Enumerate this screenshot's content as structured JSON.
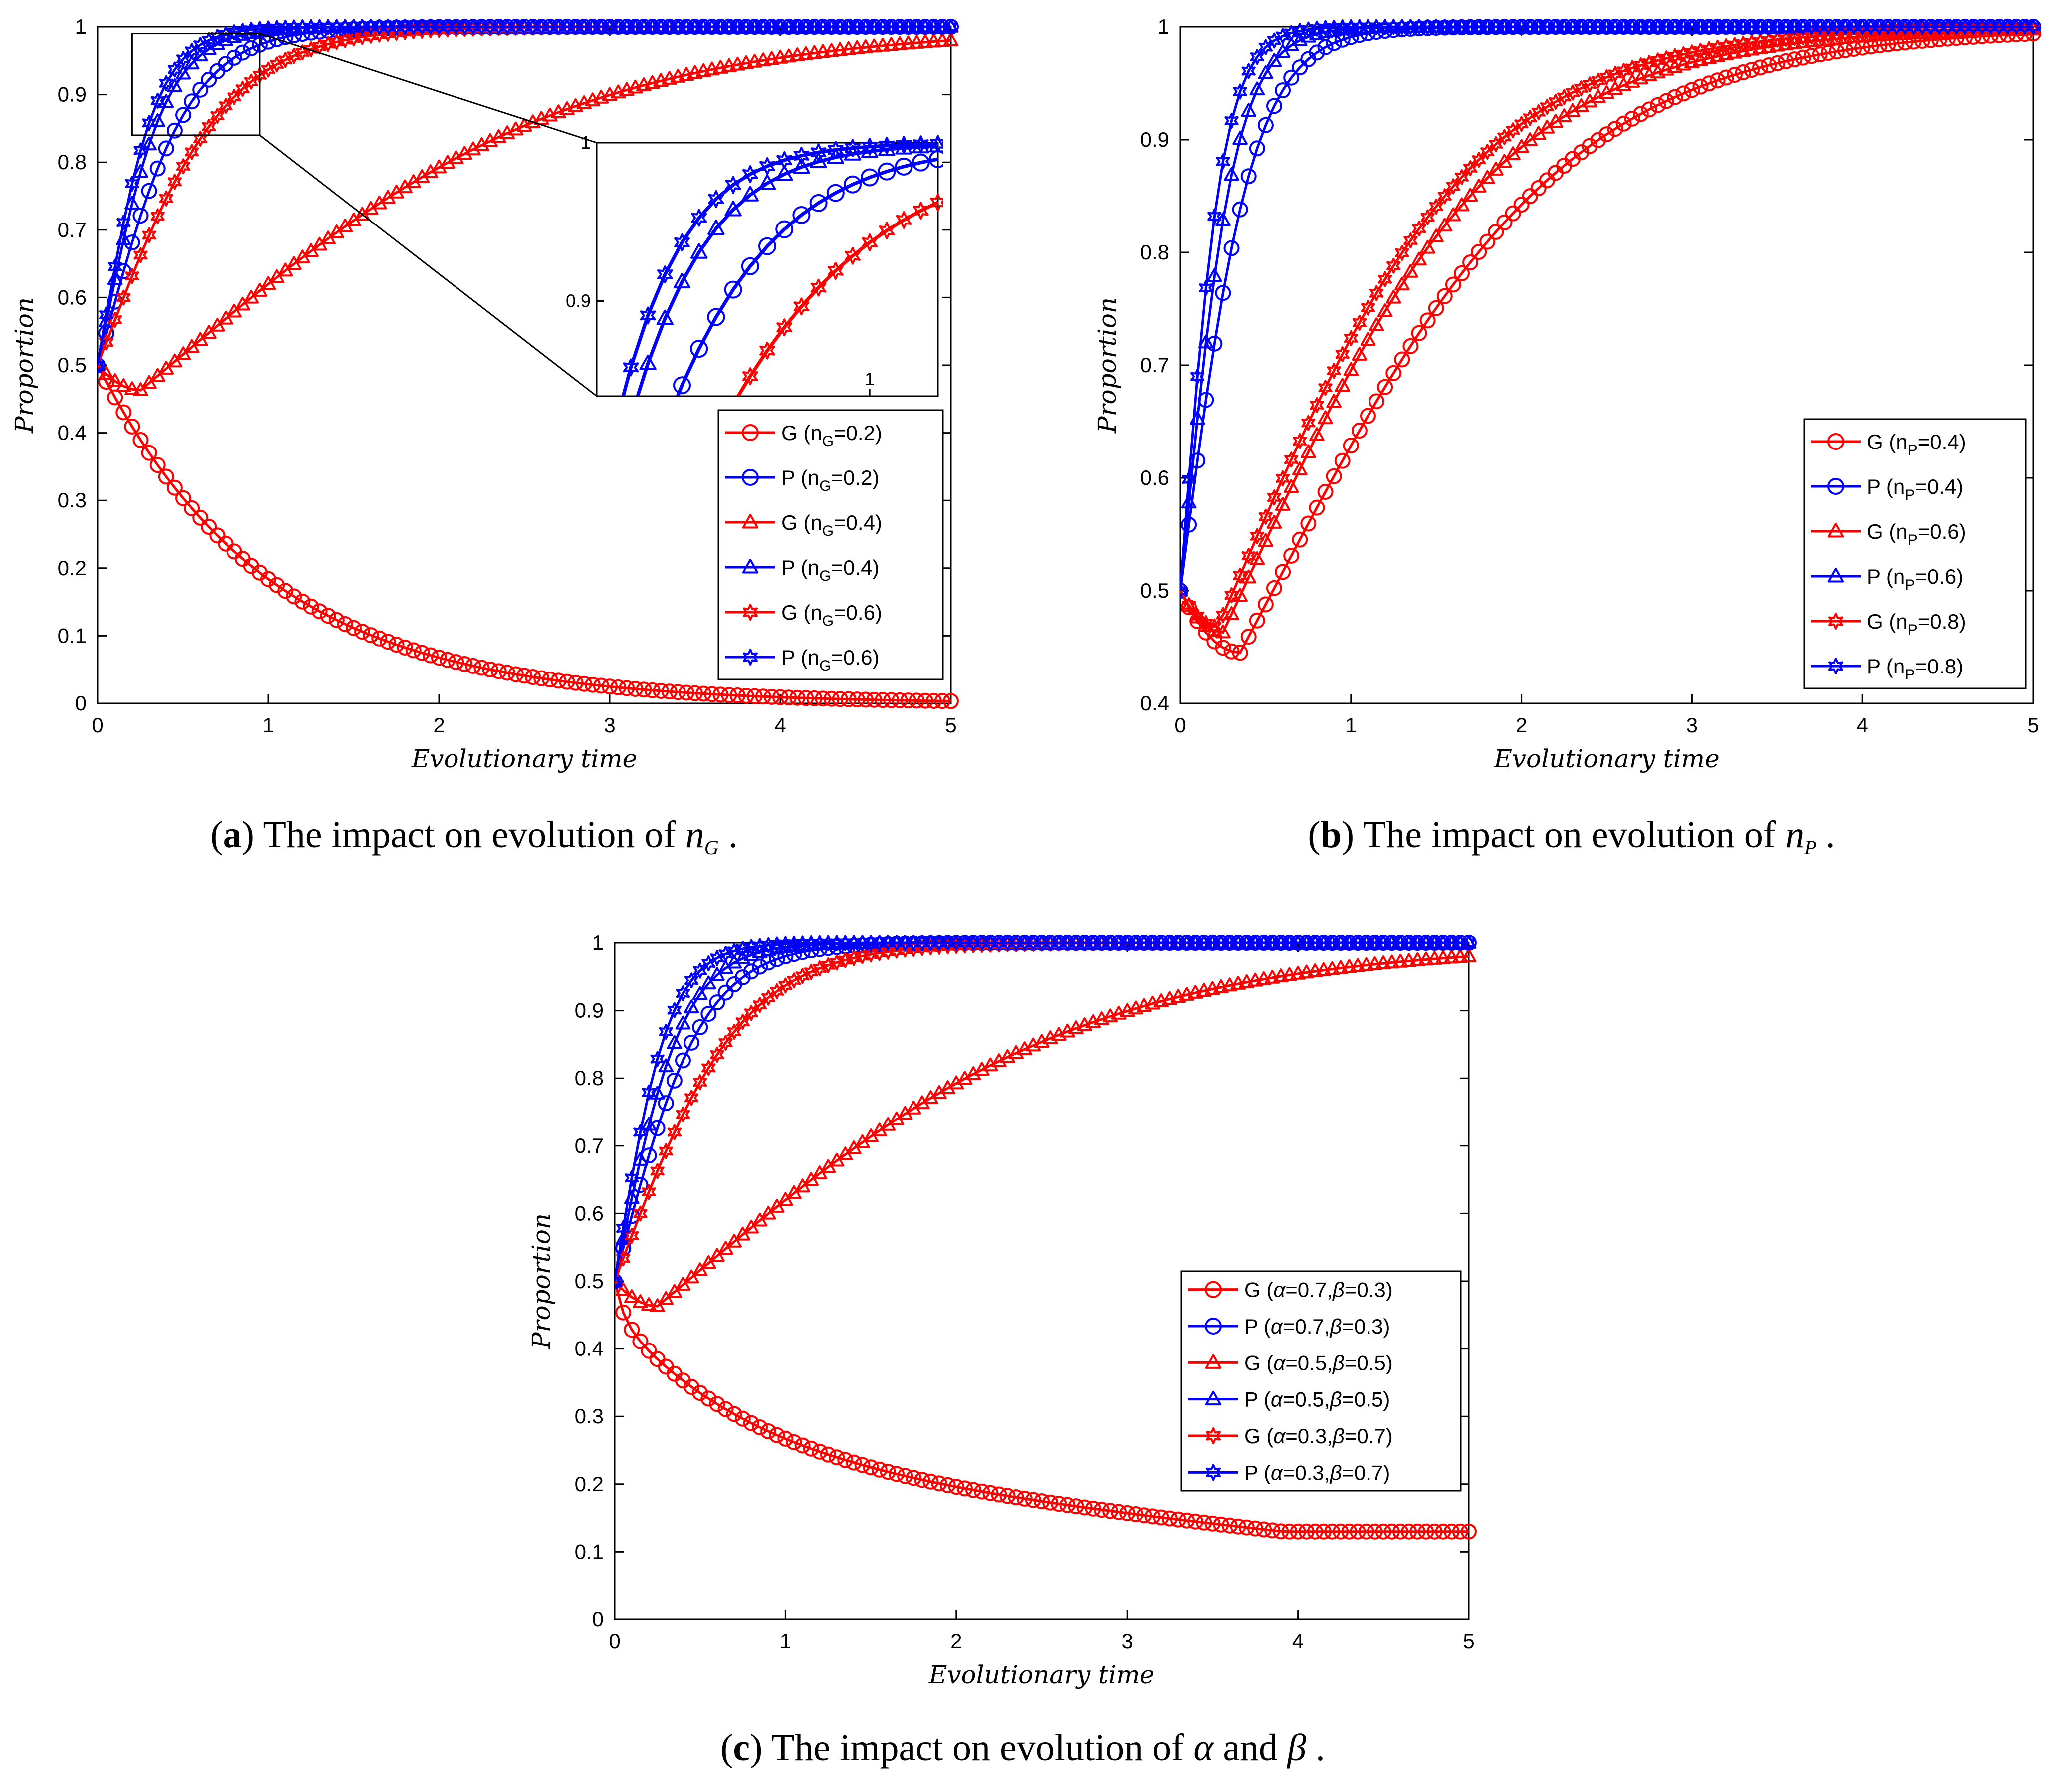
{
  "palette": {
    "G": "#ff0000",
    "P": "#0000ff",
    "axis": "#000000"
  },
  "chart_data": [
    {
      "id": "a",
      "type": "line",
      "title": "",
      "xlabel": "Evolutionary time",
      "ylabel": "Proportion",
      "xlim": [
        0,
        5
      ],
      "ylim": [
        0,
        1
      ],
      "xticks": [
        0,
        1,
        2,
        3,
        4,
        5
      ],
      "yticks": [
        0,
        0.1,
        0.2,
        0.3,
        0.4,
        0.5,
        0.6,
        0.7,
        0.8,
        0.9,
        1
      ],
      "caption": {
        "label": "(a)",
        "text": " The impact on evolution of ",
        "symbol": "n",
        "symbol_sub": "G",
        "tail": "."
      },
      "legend": {
        "position": "right",
        "entries": [
          {
            "name": "G",
            "param": "n",
            "sub": "G",
            "value": "=0.2)"
          },
          {
            "name": "P",
            "param": "n",
            "sub": "G",
            "value": "=0.2)"
          },
          {
            "name": "G",
            "param": "n",
            "sub": "G",
            "value": "=0.4)"
          },
          {
            "name": "P",
            "param": "n",
            "sub": "G",
            "value": "=0.4)"
          },
          {
            "name": "G",
            "param": "n",
            "sub": "G",
            "value": "=0.6)"
          },
          {
            "name": "P",
            "param": "n",
            "sub": "G",
            "value": "=0.6)"
          }
        ]
      },
      "series": [
        {
          "name": "G (nG=0.2)",
          "color": "G",
          "marker": "circle",
          "model": "exp",
          "start": 0.5,
          "end": 0.0,
          "rate": 1.0
        },
        {
          "name": "P (nG=0.2)",
          "color": "P",
          "marker": "circle",
          "model": "logistic",
          "start": 0.5,
          "rate": 3.8
        },
        {
          "name": "G (nG=0.4)",
          "color": "G",
          "marker": "triangle",
          "model": "dip",
          "start": 0.5,
          "min": 0.463,
          "tmin": 0.25,
          "rate": 0.85
        },
        {
          "name": "P (nG=0.4)",
          "color": "P",
          "marker": "triangle",
          "model": "logistic",
          "start": 0.5,
          "rate": 5.2
        },
        {
          "name": "G (nG=0.6)",
          "color": "G",
          "marker": "hexagram",
          "model": "logistic",
          "start": 0.5,
          "rate": 2.7
        },
        {
          "name": "P (nG=0.6)",
          "color": "P",
          "marker": "hexagram",
          "model": "logistic",
          "start": 0.5,
          "rate": 6.0
        }
      ],
      "inset": {
        "zoom_box": {
          "x": [
            0.2,
            0.95
          ],
          "y": [
            0.84,
            0.99
          ]
        },
        "xlim": [
          0.2,
          1.2
        ],
        "ylim": [
          0.84,
          1.0
        ],
        "yticks": [
          0.9,
          1
        ],
        "xticks": [
          1
        ],
        "series_shown": [
          "P (nG=0.2)",
          "P (nG=0.4)",
          "P (nG=0.6)",
          "G (nG=0.6)"
        ]
      }
    },
    {
      "id": "b",
      "type": "line",
      "title": "",
      "xlabel": "Evolutionary time",
      "ylabel": "Proportion",
      "xlim": [
        0,
        5
      ],
      "ylim": [
        0.4,
        1
      ],
      "xticks": [
        0,
        1,
        2,
        3,
        4,
        5
      ],
      "yticks": [
        0.4,
        0.5,
        0.6,
        0.7,
        0.8,
        0.9,
        1
      ],
      "caption": {
        "label": "(b)",
        "text": " The impact on evolution of ",
        "symbol": "n",
        "symbol_sub": "P",
        "tail": "."
      },
      "legend": {
        "position": "right",
        "entries": [
          {
            "name": "G",
            "param": "n",
            "sub": "P",
            "value": "=0.4)"
          },
          {
            "name": "P",
            "param": "n",
            "sub": "P",
            "value": "=0.4)"
          },
          {
            "name": "G",
            "param": "n",
            "sub": "P",
            "value": "=0.6)"
          },
          {
            "name": "P",
            "param": "n",
            "sub": "P",
            "value": "=0.6)"
          },
          {
            "name": "G",
            "param": "n",
            "sub": "P",
            "value": "=0.8)"
          },
          {
            "name": "P",
            "param": "n",
            "sub": "P",
            "value": "=0.8)"
          }
        ]
      },
      "series": [
        {
          "name": "G (nP=0.4)",
          "color": "G",
          "marker": "circle",
          "model": "dip",
          "start": 0.5,
          "min": 0.445,
          "tmin": 0.35,
          "rate": 1.15
        },
        {
          "name": "P (nP=0.4)",
          "color": "P",
          "marker": "circle",
          "model": "logistic",
          "start": 0.5,
          "rate": 4.7
        },
        {
          "name": "G (nP=0.6)",
          "color": "G",
          "marker": "triangle",
          "model": "dip",
          "start": 0.5,
          "min": 0.463,
          "tmin": 0.25,
          "rate": 1.3
        },
        {
          "name": "P (nP=0.6)",
          "color": "P",
          "marker": "triangle",
          "model": "logistic",
          "start": 0.5,
          "rate": 6.3
        },
        {
          "name": "G (nP=0.8)",
          "color": "G",
          "marker": "hexagram",
          "model": "dip",
          "start": 0.5,
          "min": 0.468,
          "tmin": 0.22,
          "rate": 1.4
        },
        {
          "name": "P (nP=0.8)",
          "color": "P",
          "marker": "hexagram",
          "model": "logistic",
          "start": 0.5,
          "rate": 8.0
        }
      ]
    },
    {
      "id": "c",
      "type": "line",
      "title": "",
      "xlabel": "Evolutionary time",
      "ylabel": "Proportion",
      "xlim": [
        0,
        5
      ],
      "ylim": [
        0,
        1
      ],
      "xticks": [
        0,
        1,
        2,
        3,
        4,
        5
      ],
      "yticks": [
        0,
        0.1,
        0.2,
        0.3,
        0.4,
        0.5,
        0.6,
        0.7,
        0.8,
        0.9,
        1
      ],
      "caption": {
        "label": "(c)",
        "text": " The impact on evolution of ",
        "symbol": "α",
        "mid": " and ",
        "symbol2": "β",
        "tail": "."
      },
      "legend": {
        "position": "right",
        "entries": [
          {
            "name": "G",
            "alpha": "=0.7,",
            "beta": "=0.3)"
          },
          {
            "name": "P",
            "alpha": "=0.7,",
            "beta": "=0.3)"
          },
          {
            "name": "G",
            "alpha": "=0.5,",
            "beta": "=0.5)"
          },
          {
            "name": "P",
            "alpha": "=0.5,",
            "beta": "=0.5)"
          },
          {
            "name": "G",
            "alpha": "=0.3,",
            "beta": "=0.7)"
          },
          {
            "name": "P",
            "alpha": "=0.3,",
            "beta": "=0.7)"
          }
        ]
      },
      "series": [
        {
          "name": "G (α=0.7,β=0.3)",
          "color": "G",
          "marker": "circle",
          "model": "decay2",
          "start": 0.5,
          "end": 0.13
        },
        {
          "name": "P (α=0.7,β=0.3)",
          "color": "P",
          "marker": "circle",
          "model": "logistic",
          "start": 0.5,
          "rate": 3.9
        },
        {
          "name": "G (α=0.5,β=0.5)",
          "color": "G",
          "marker": "triangle",
          "model": "dip",
          "start": 0.5,
          "min": 0.463,
          "tmin": 0.25,
          "rate": 0.85
        },
        {
          "name": "P (α=0.5,β=0.5)",
          "color": "P",
          "marker": "triangle",
          "model": "logistic",
          "start": 0.5,
          "rate": 5.0
        },
        {
          "name": "G (α=0.3,β=0.7)",
          "color": "G",
          "marker": "hexagram",
          "model": "logistic",
          "start": 0.5,
          "rate": 2.7
        },
        {
          "name": "P (α=0.3,β=0.7)",
          "color": "P",
          "marker": "hexagram",
          "model": "logistic",
          "start": 0.5,
          "rate": 6.3
        }
      ]
    }
  ]
}
